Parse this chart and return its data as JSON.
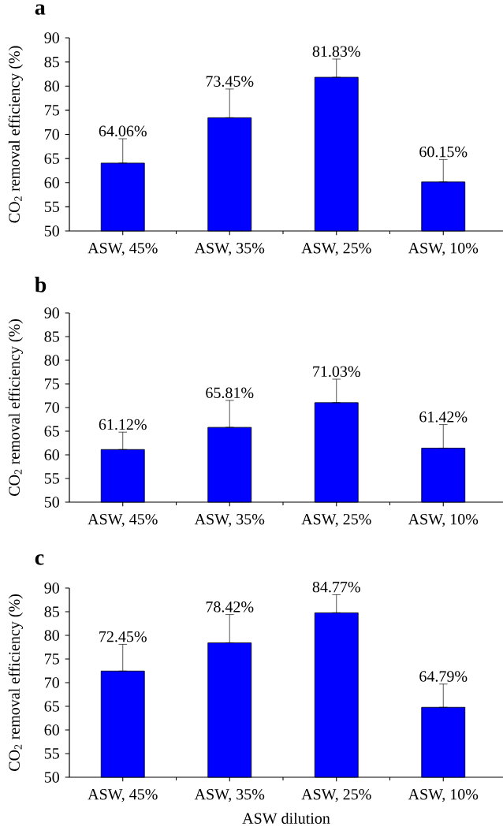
{
  "chart_data": [
    {
      "type": "bar",
      "title": "a",
      "ylabel": "CO$_{2}$ removal efficiency (%)",
      "categories": [
        "ASW, 45%",
        "ASW, 35%",
        "ASW, 25%",
        "ASW, 10%"
      ],
      "values": [
        64.06,
        73.45,
        81.83,
        60.15
      ],
      "errors": [
        [
          64.06,
          69.1
        ],
        [
          73.45,
          79.4
        ],
        [
          81.83,
          85.6
        ],
        [
          60.15,
          64.8
        ]
      ],
      "value_labels": [
        "64.06%",
        "73.45%",
        "81.83%",
        "60.15%"
      ],
      "color": "#0000ff",
      "ylim": [
        50,
        90
      ],
      "yticks": [
        50,
        55,
        60,
        65,
        70,
        75,
        80,
        85,
        90
      ]
    },
    {
      "type": "bar",
      "title": "b",
      "ylabel": "CO$_{2}$ removal efficiency (%)",
      "categories": [
        "ASW, 45%",
        "ASW, 35%",
        "ASW, 25%",
        "ASW, 10%"
      ],
      "values": [
        61.12,
        65.81,
        71.03,
        61.42
      ],
      "errors": [
        [
          61.12,
          64.8
        ],
        [
          65.81,
          71.5
        ],
        [
          71.03,
          76.0
        ],
        [
          61.42,
          66.4
        ]
      ],
      "value_labels": [
        "61.12%",
        "65.81%",
        "71.03%",
        "61.42%"
      ],
      "color": "#0000ff",
      "ylim": [
        50,
        90
      ],
      "yticks": [
        50,
        55,
        60,
        65,
        70,
        75,
        80,
        85,
        90
      ]
    },
    {
      "type": "bar",
      "title": "c",
      "xlabel": "ASW dilution",
      "ylabel": "CO$_{2}$ removal efficiency (%)",
      "categories": [
        "ASW, 45%",
        "ASW, 35%",
        "ASW, 25%",
        "ASW, 10%"
      ],
      "values": [
        72.45,
        78.42,
        84.77,
        64.79
      ],
      "errors": [
        [
          72.45,
          78.1
        ],
        [
          78.42,
          84.4
        ],
        [
          84.77,
          88.6
        ],
        [
          64.79,
          69.7
        ]
      ],
      "value_labels": [
        "72.45%",
        "78.42%",
        "84.77%",
        "64.79%"
      ],
      "color": "#0000ff",
      "ylim": [
        50,
        90
      ],
      "yticks": [
        50,
        55,
        60,
        65,
        70,
        75,
        80,
        85,
        90
      ]
    }
  ]
}
